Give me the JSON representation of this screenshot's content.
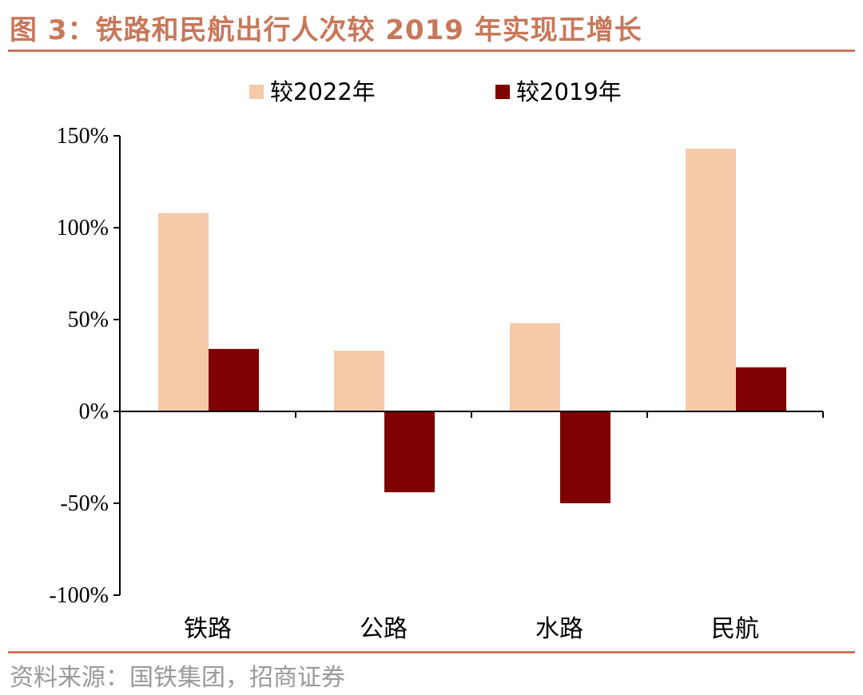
{
  "header": {
    "title": "图 3：铁路和民航出行人次较 2019 年实现正增长"
  },
  "footer": {
    "source": "资料来源：国铁集团，招商证券"
  },
  "colors": {
    "accent": "#c8775a",
    "series_2022": "#f6c9a8",
    "series_2019": "#7f0000"
  },
  "chart_data": {
    "type": "bar",
    "title": "",
    "xlabel": "",
    "ylabel": "",
    "categories": [
      "铁路",
      "公路",
      "水路",
      "民航"
    ],
    "series": [
      {
        "name": "较2022年",
        "values": [
          108,
          33,
          48,
          143
        ]
      },
      {
        "name": "较2019年",
        "values": [
          34,
          -44,
          -50,
          24
        ]
      }
    ],
    "ylim": [
      -100,
      150
    ],
    "yticks": [
      -100,
      -50,
      0,
      50,
      100,
      150
    ],
    "ytick_labels": [
      "-100%",
      "-50%",
      "0%",
      "50%",
      "100%",
      "150%"
    ],
    "grid": false,
    "legend_position": "top-center"
  }
}
